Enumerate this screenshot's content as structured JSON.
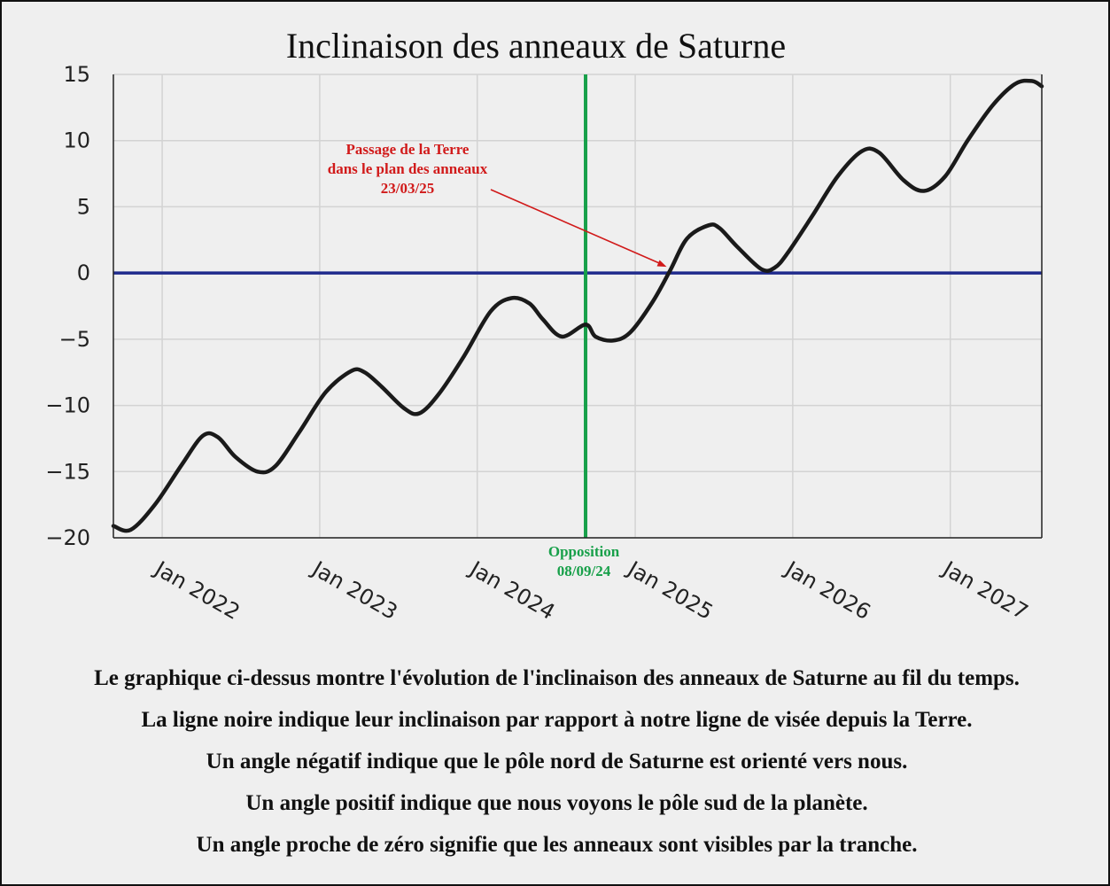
{
  "chart_data": {
    "type": "line",
    "title": "Inclinaison des anneaux de Saturne",
    "xlabel": "",
    "ylabel": "",
    "xlim": [
      "2021-09-10",
      "2027-08-01"
    ],
    "ylim": [
      -20,
      15
    ],
    "grid": true,
    "y_ticks": [
      15,
      10,
      5,
      0,
      -5,
      -10,
      -15,
      -20
    ],
    "y_tick_labels": [
      "15",
      "10",
      "5",
      "0",
      "−5",
      "−10",
      "−15",
      "−20"
    ],
    "x_ticks": [
      {
        "date": "2022-01-01",
        "label": "Jan 2022"
      },
      {
        "date": "2023-01-01",
        "label": "Jan 2023"
      },
      {
        "date": "2024-01-01",
        "label": "Jan 2024"
      },
      {
        "date": "2025-01-01",
        "label": "Jan 2025"
      },
      {
        "date": "2026-01-01",
        "label": "Jan 2026"
      },
      {
        "date": "2027-01-01",
        "label": "Jan 2027"
      }
    ],
    "series": [
      {
        "color": "#1a1a1a",
        "x": [
          "2021-09-10",
          "2021-10-20",
          "2021-12-15",
          "2022-02-15",
          "2022-04-05",
          "2022-05-10",
          "2022-06-20",
          "2022-08-10",
          "2022-09-20",
          "2022-11-15",
          "2023-01-15",
          "2023-03-15",
          "2023-04-15",
          "2023-05-25",
          "2023-07-15",
          "2023-08-20",
          "2023-10-05",
          "2023-12-01",
          "2024-02-01",
          "2024-03-20",
          "2024-05-01",
          "2024-06-01",
          "2024-07-15",
          "2024-09-08",
          "2024-10-01",
          "2024-11-10",
          "2024-12-20",
          "2025-02-10",
          "2025-03-23",
          "2025-05-01",
          "2025-06-20",
          "2025-07-15",
          "2025-08-25",
          "2025-10-20",
          "2025-11-20",
          "2025-12-20",
          "2026-02-15",
          "2026-04-15",
          "2026-06-10",
          "2026-07-20",
          "2026-09-15",
          "2026-11-01",
          "2026-12-20",
          "2027-02-10",
          "2027-04-10",
          "2027-06-01",
          "2027-07-10",
          "2027-08-01"
        ],
        "y": [
          -19.1,
          -19.4,
          -17.5,
          -14.5,
          -12.3,
          -12.4,
          -13.9,
          -15.0,
          -14.6,
          -12.0,
          -9.0,
          -7.4,
          -7.5,
          -8.6,
          -10.2,
          -10.6,
          -9.1,
          -6.3,
          -2.9,
          -1.9,
          -2.3,
          -3.5,
          -4.8,
          -3.9,
          -4.8,
          -5.1,
          -4.5,
          -2.2,
          0.2,
          2.6,
          3.6,
          3.4,
          2.0,
          0.3,
          0.4,
          1.5,
          4.3,
          7.3,
          9.2,
          9.1,
          7.0,
          6.2,
          7.3,
          10.0,
          12.7,
          14.3,
          14.5,
          14.1
        ]
      },
      {
        "color": "#1f2a8c",
        "x": [
          "2021-09-10",
          "2027-08-01"
        ],
        "y": [
          0,
          0
        ]
      }
    ],
    "vertical_lines": [
      {
        "date": "2024-09-08",
        "color": "#18a04a"
      }
    ],
    "annotations": [
      {
        "lines": [
          "Passage de la Terre",
          "dans le plan des anneaux",
          "23/03/25"
        ],
        "color": "#d11a1a",
        "point_date": "2025-03-23",
        "point_value": 0
      },
      {
        "lines": [
          "Opposition",
          "08/09/24"
        ],
        "color": "#18a04a",
        "point_date": "2024-09-08"
      }
    ]
  },
  "caption": {
    "lines": [
      "Le graphique ci-dessus montre l'évolution de l'inclinaison des anneaux de Saturne au fil du temps.",
      "La ligne noire indique leur inclinaison par rapport à notre ligne de visée depuis la Terre.",
      "Un angle négatif indique que le pôle nord de Saturne est orienté vers nous.",
      "Un angle positif indique que nous voyons le pôle sud de la planète.",
      "Un angle proche de zéro signifie que les anneaux sont visibles par la tranche."
    ]
  }
}
